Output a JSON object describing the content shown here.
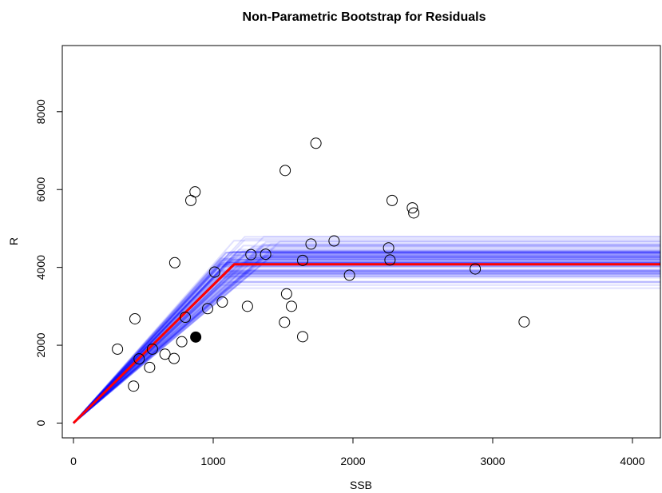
{
  "chart_data": {
    "type": "line",
    "title": "Non-Parametric Bootstrap for Residuals",
    "xlabel": "SSB",
    "ylabel": "R",
    "xlim": [
      -80,
      4200
    ],
    "ylim": [
      -380,
      9700
    ],
    "xticks": [
      0,
      1000,
      2000,
      3000,
      4000
    ],
    "yticks": [
      0,
      2000,
      4000,
      6000,
      8000
    ],
    "grid": false,
    "legend": "none",
    "colors": {
      "bootstrap": "#0000ff",
      "fit": "#ff0000",
      "points": "#000000"
    },
    "bootstrap_fits": {
      "description_count": 100,
      "x_end": 4200,
      "breakpoint_range": [
        1050,
        1500
      ],
      "plateau_range": [
        3250,
        5100
      ]
    },
    "fit_line": {
      "name": "",
      "x": [
        0,
        1150,
        4200
      ],
      "y": [
        0,
        4080,
        4080
      ]
    },
    "observations": {
      "x": [
        315,
        430,
        440,
        470,
        545,
        565,
        655,
        720,
        725,
        775,
        800,
        840,
        870,
        960,
        1010,
        1065,
        1245,
        1270,
        1375,
        1510,
        1515,
        1525,
        1560,
        1640,
        1640,
        1700,
        1735,
        1865,
        1975,
        2255,
        2265,
        2280,
        2425,
        2435,
        2875,
        3225
      ],
      "y": [
        1900,
        950,
        2680,
        1650,
        1430,
        1900,
        1770,
        1660,
        4120,
        2090,
        2720,
        5720,
        5940,
        2940,
        3880,
        3110,
        3000,
        4330,
        4340,
        2590,
        6490,
        3320,
        3000,
        2220,
        4180,
        4600,
        7190,
        4680,
        3800,
        4500,
        4190,
        5720,
        5530,
        5400,
        3960,
        2600
      ]
    },
    "highlight_point": {
      "x": 875,
      "y": 2210
    }
  }
}
